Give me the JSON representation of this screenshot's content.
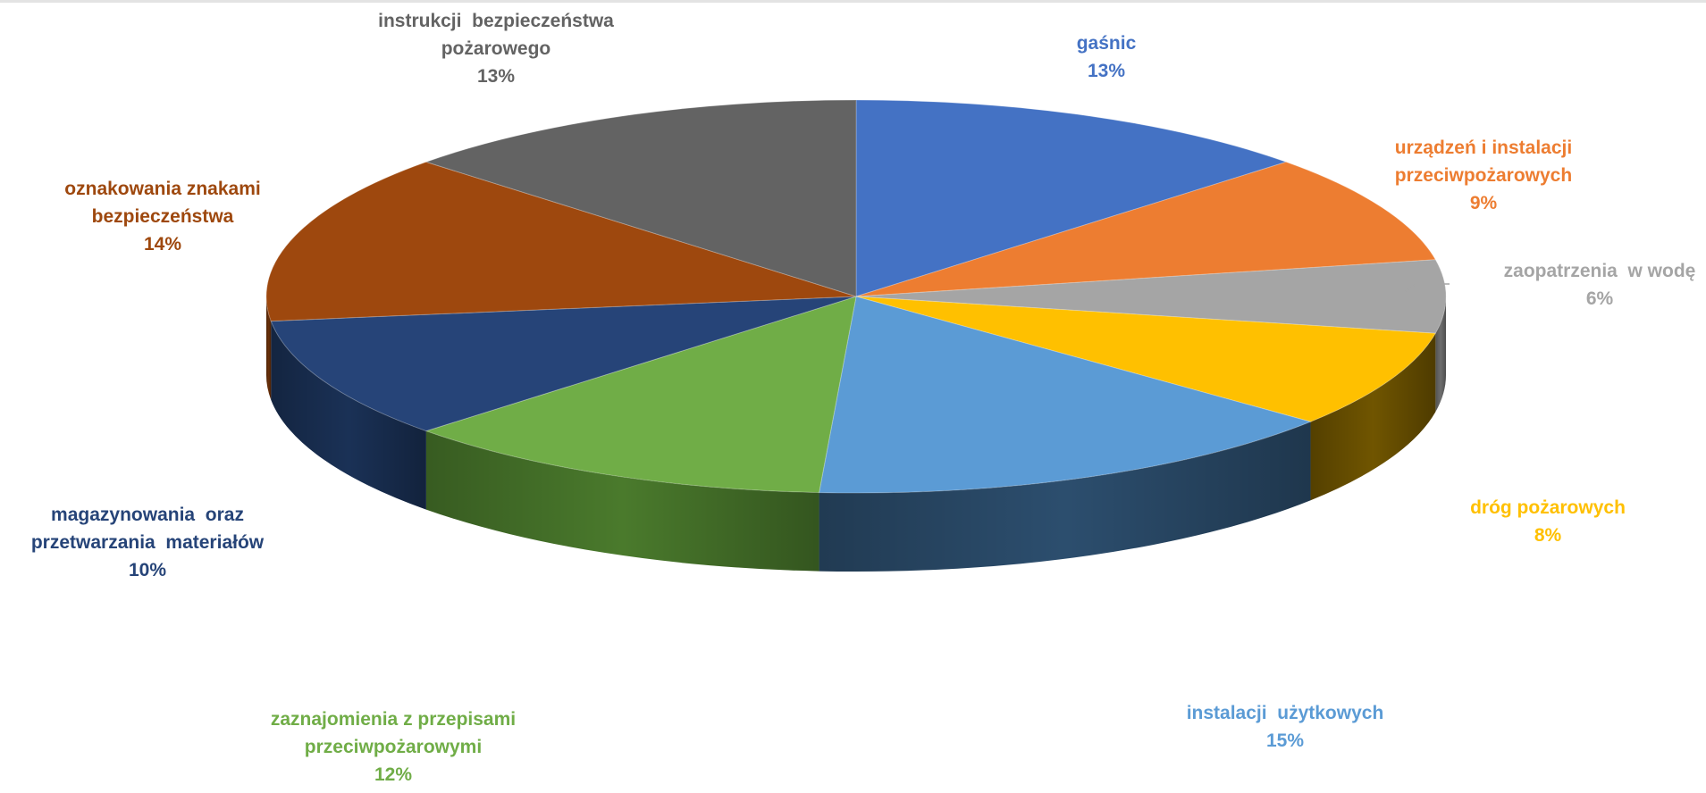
{
  "chart_data": {
    "type": "pie",
    "title": "",
    "style": "3d",
    "data_labels": "category-and-percent",
    "legend": "none",
    "slices": [
      {
        "label_lines": [
          "gaśnic"
        ],
        "percent_label": "13%",
        "value": 13,
        "color": "#4472C4",
        "side": "#2F4F89"
      },
      {
        "label_lines": [
          "urządzeń i instalacji",
          "przeciwpożarowych"
        ],
        "percent_label": "9%",
        "value": 9,
        "color": "#ED7D31",
        "side": "#A3561F"
      },
      {
        "label_lines": [
          "zaopatrzenia  w wodę"
        ],
        "percent_label": "6%",
        "value": 6,
        "color": "#A5A5A5",
        "side": "#6E6E6E"
      },
      {
        "label_lines": [
          "dróg pożarowych"
        ],
        "percent_label": "8%",
        "value": 8,
        "color": "#FFC000",
        "side": "#705500"
      },
      {
        "label_lines": [
          "instalacji  użytkowych"
        ],
        "percent_label": "15%",
        "value": 15,
        "color": "#5B9BD5",
        "side": "#2C4E6E"
      },
      {
        "label_lines": [
          "zaznajomienia z przepisami",
          "przeciwpożarowymi"
        ],
        "percent_label": "12%",
        "value": 12,
        "color": "#70AD47",
        "side": "#4A7A2C"
      },
      {
        "label_lines": [
          "magazynowania  oraz",
          "przetwarzania  materiałów"
        ],
        "percent_label": "10%",
        "value": 10,
        "color": "#264478",
        "side": "#1A3156"
      },
      {
        "label_lines": [
          "oznakowania znakami",
          "bezpieczeństwa"
        ],
        "percent_label": "14%",
        "value": 14,
        "color": "#9E480E",
        "side": "#6A3009"
      },
      {
        "label_lines": [
          "instrukcji  bezpieczeństwa",
          "pożarowego"
        ],
        "percent_label": "13%",
        "value": 13,
        "color": "#636363",
        "side": "#404040"
      }
    ],
    "label_colors": [
      "#4472C4",
      "#ED7D31",
      "#A5A5A5",
      "#FFC000",
      "#5B9BD5",
      "#70AD47",
      "#264478",
      "#9E480E",
      "#636363"
    ]
  }
}
